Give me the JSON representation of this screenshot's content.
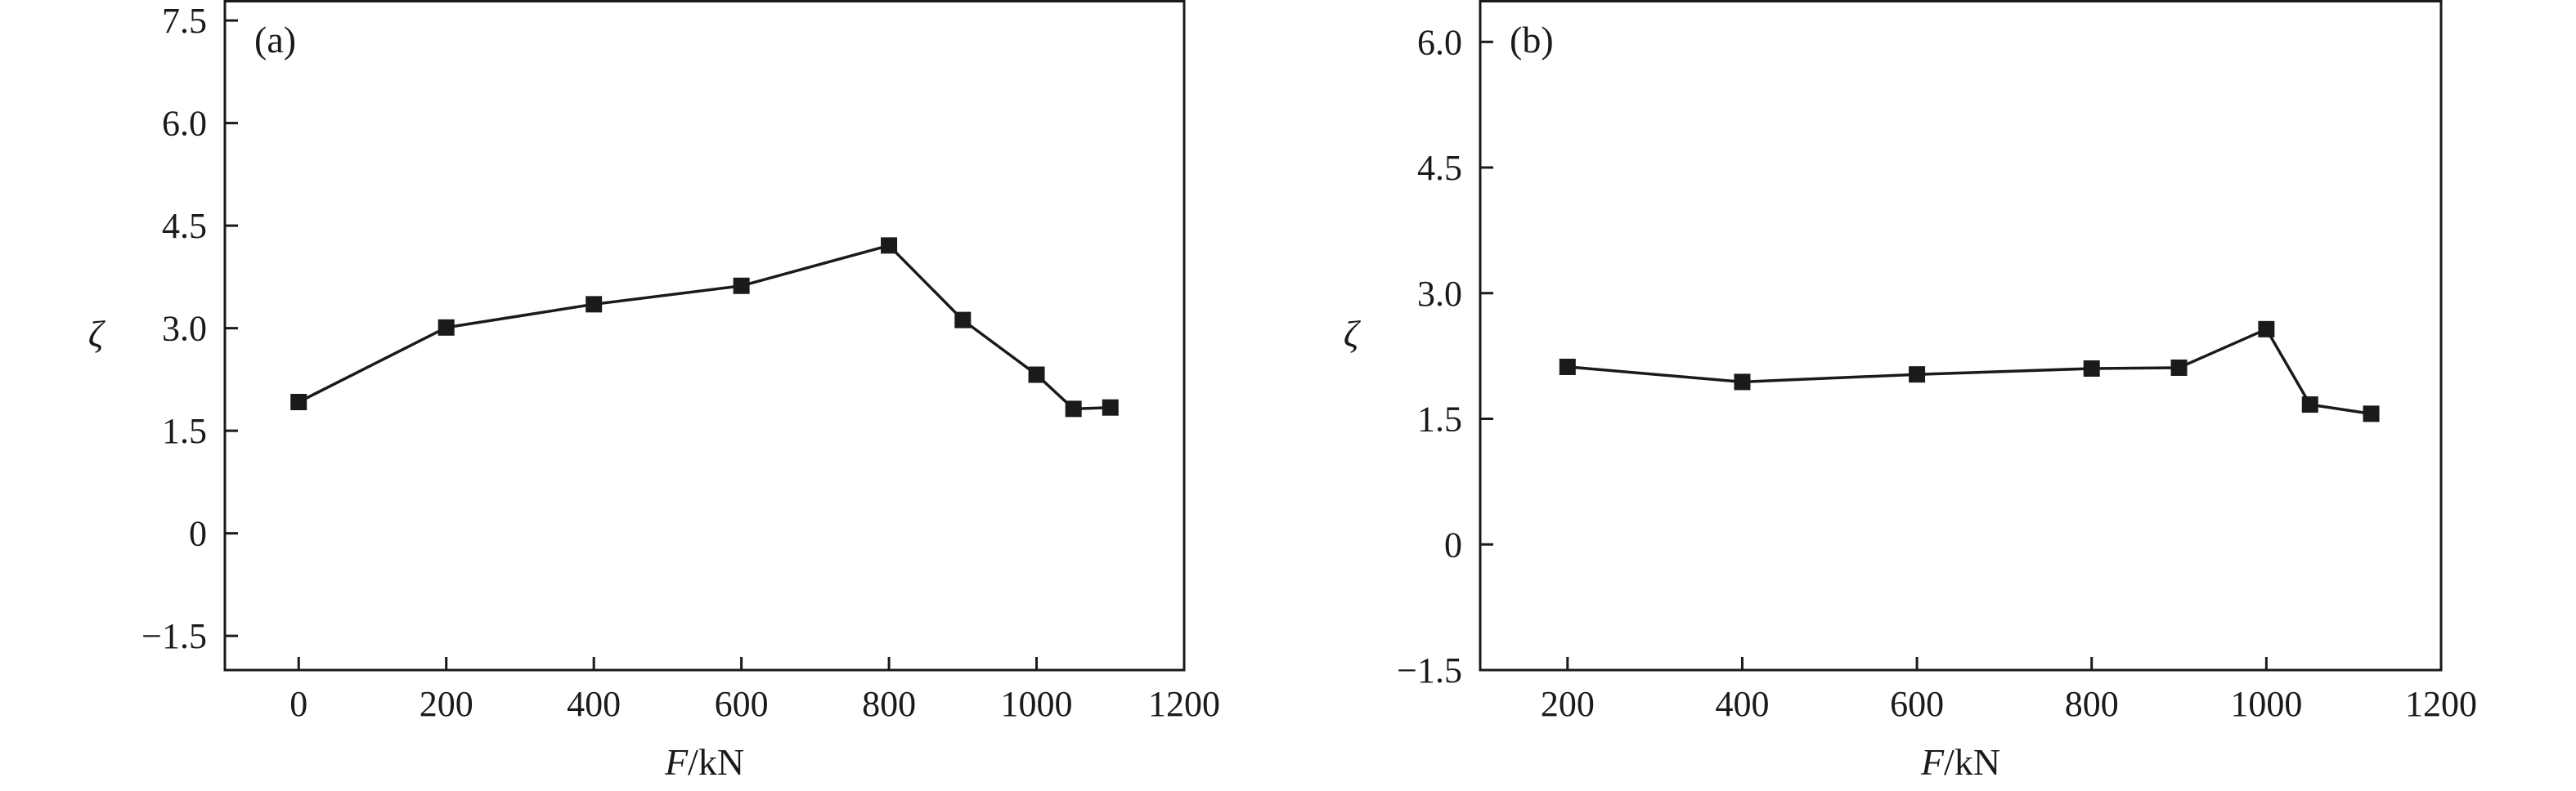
{
  "chart_data": [
    {
      "type": "line",
      "panel_label": "(a)",
      "xlabel_italic": "F",
      "xlabel_rest": "/kN",
      "ylabel": "ζ",
      "xlim": [
        -100,
        1200
      ],
      "ylim": [
        -2.0,
        7.8
      ],
      "xticks": [
        0,
        200,
        400,
        600,
        800,
        1000,
        1200
      ],
      "xtick_labels": [
        "0",
        "200",
        "400",
        "600",
        "800",
        "1000",
        "1200"
      ],
      "yticks": [
        -1.5,
        0,
        1.5,
        3.0,
        4.5,
        6.0,
        7.5
      ],
      "ytick_labels": [
        "−1.5",
        "0",
        "1.5",
        "3.0",
        "4.5",
        "6.0",
        "7.5"
      ],
      "marker": "square",
      "series": [
        {
          "x": [
            0,
            200,
            400,
            600,
            800,
            900,
            1000,
            1050,
            1100
          ],
          "y": [
            1.92,
            3.01,
            3.35,
            3.62,
            4.21,
            3.12,
            2.32,
            1.82,
            1.84
          ]
        }
      ]
    },
    {
      "type": "line",
      "panel_label": "(b)",
      "xlabel_italic": "F",
      "xlabel_rest": "/kN",
      "ylabel": "ζ",
      "xlim": [
        100,
        1200
      ],
      "ylim": [
        -1.5,
        6.5
      ],
      "xticks": [
        200,
        400,
        600,
        800,
        1000,
        1200
      ],
      "xtick_labels": [
        "200",
        "400",
        "600",
        "800",
        "1000",
        "1200"
      ],
      "yticks": [
        -1.5,
        0,
        1.5,
        3.0,
        4.5,
        6.0
      ],
      "ytick_labels": [
        "−1.5",
        "0",
        "1.5",
        "3.0",
        "4.5",
        "6.0"
      ],
      "marker": "square",
      "series": [
        {
          "x": [
            200,
            400,
            600,
            800,
            900,
            1000,
            1050,
            1120
          ],
          "y": [
            2.12,
            1.94,
            2.03,
            2.1,
            2.11,
            2.57,
            1.67,
            1.56
          ]
        }
      ]
    }
  ]
}
